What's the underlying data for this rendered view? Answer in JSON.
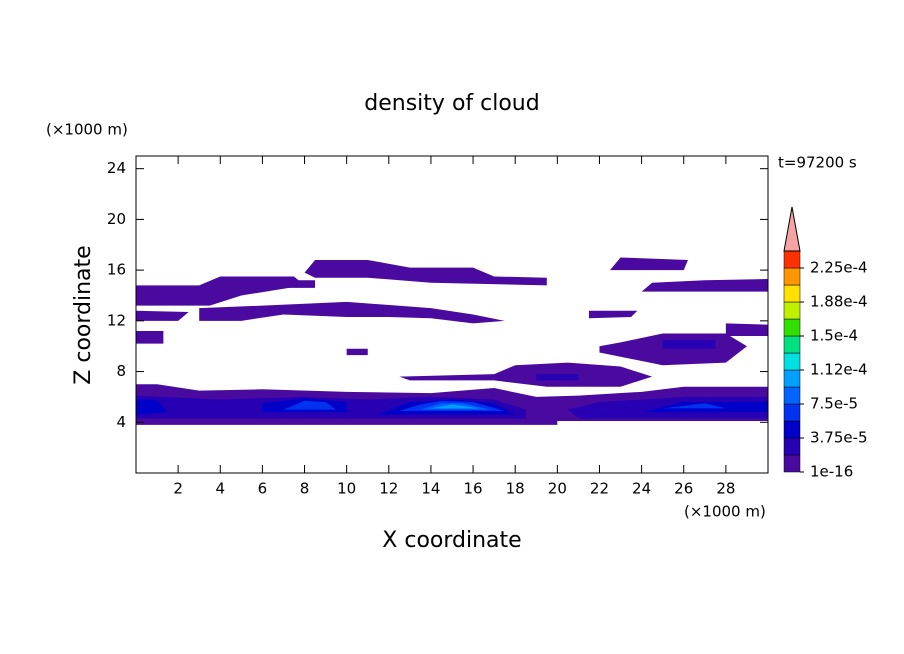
{
  "chart_data": {
    "type": "contour",
    "title": "density of cloud",
    "time_label": "t=97200 s",
    "x_label": "X coordinate",
    "y_label": "Z coordinate",
    "x_unit": "(×1000 m)",
    "y_unit": "(×1000 m)",
    "xlim": [
      0,
      30
    ],
    "ylim": [
      0,
      25
    ],
    "xticks": [
      2,
      4,
      6,
      8,
      10,
      12,
      14,
      16,
      18,
      20,
      22,
      24,
      26,
      28
    ],
    "yticks": [
      4,
      8,
      12,
      16,
      20,
      24
    ],
    "colorbar": {
      "lim": [
        1e-16,
        0.00024375
      ],
      "colors": [
        "#4a0aa0",
        "#2800b4",
        "#0000c8",
        "#0032f0",
        "#0064ff",
        "#00a0ff",
        "#00e0e0",
        "#00e080",
        "#30e000",
        "#c0f000",
        "#ffe000",
        "#ff9600",
        "#ff3000"
      ],
      "extend_color": "#f4a4a4",
      "ticks": [
        {
          "value": 1e-16,
          "label": "1e-16"
        },
        {
          "value": 3.75e-05,
          "label": "3.75e-5"
        },
        {
          "value": 7.5e-05,
          "label": "7.5e-5"
        },
        {
          "value": 0.0001125,
          "label": "1.12e-4"
        },
        {
          "value": 0.00015,
          "label": "1.5e-4"
        },
        {
          "value": 0.0001875,
          "label": "1.88e-4"
        },
        {
          "value": 0.000225,
          "label": "2.25e-4"
        }
      ]
    },
    "regions": [
      {
        "level": 0,
        "x": [
          0,
          20,
          20,
          30,
          30,
          26,
          24,
          21,
          19,
          17,
          14,
          10,
          6,
          3,
          1,
          0
        ],
        "z": [
          3.8,
          3.8,
          4.1,
          4.1,
          6.8,
          6.8,
          6.4,
          6.1,
          6,
          6.7,
          6.3,
          6.4,
          6.6,
          6.5,
          7,
          7
        ]
      },
      {
        "level": 0,
        "x": [
          0,
          3.5,
          5,
          8,
          7.5,
          4,
          3,
          0
        ],
        "z": [
          13.2,
          13.2,
          14,
          14.8,
          15.5,
          15.5,
          14.8,
          14.8
        ]
      },
      {
        "level": 0,
        "x": [
          4.5,
          8.5,
          8.5,
          4.5
        ],
        "z": [
          14.6,
          14.6,
          15.2,
          15.2
        ]
      },
      {
        "level": 0,
        "x": [
          8,
          8.5,
          11,
          13,
          16,
          17,
          19.5,
          19.5,
          14,
          11,
          8.5
        ],
        "z": [
          15.8,
          16.8,
          16.8,
          16.2,
          16.2,
          15.5,
          15.4,
          14.8,
          15,
          15.4,
          15.4
        ]
      },
      {
        "level": 0,
        "x": [
          3,
          3,
          6,
          10,
          14,
          16,
          17.5,
          16,
          14,
          12,
          10,
          7,
          5
        ],
        "z": [
          12,
          13,
          13.2,
          13.5,
          13,
          12.5,
          12,
          11.8,
          12.2,
          12.3,
          12.3,
          12.5,
          12
        ]
      },
      {
        "level": 0,
        "x": [
          0,
          2,
          2.5,
          0
        ],
        "z": [
          12,
          12,
          12.7,
          12.8
        ]
      },
      {
        "level": 0,
        "x": [
          21.5,
          23.5,
          23.8,
          21.5
        ],
        "z": [
          12.2,
          12.3,
          12.8,
          12.8
        ]
      },
      {
        "level": 0,
        "x": [
          0,
          1.3,
          1.3,
          0
        ],
        "z": [
          10.2,
          10.2,
          11.2,
          11.2
        ]
      },
      {
        "level": 0,
        "x": [
          22.5,
          26,
          26.2,
          23
        ],
        "z": [
          16,
          16,
          16.8,
          17
        ]
      },
      {
        "level": 0,
        "x": [
          24,
          30,
          30,
          27,
          24.5
        ],
        "z": [
          14.3,
          14.3,
          15.3,
          15.2,
          15
        ]
      },
      {
        "level": 0,
        "x": [
          28,
          30,
          30,
          28
        ],
        "z": [
          10.8,
          10.8,
          11.7,
          11.8
        ]
      },
      {
        "level": 0,
        "x": [
          22,
          25,
          28,
          29,
          28,
          25,
          23,
          22
        ],
        "z": [
          9.5,
          8.5,
          8.7,
          10,
          11,
          11,
          10.3,
          10
        ]
      },
      {
        "level": 0,
        "x": [
          12.5,
          17,
          18,
          20.5,
          23,
          24.5,
          23,
          19.5,
          17,
          13
        ],
        "z": [
          7.6,
          7.8,
          8.5,
          8.7,
          8.4,
          7.6,
          6.8,
          6.8,
          7.3,
          7.3
        ]
      },
      {
        "level": 0,
        "x": [
          10,
          11,
          11,
          10
        ],
        "z": [
          9.3,
          9.3,
          9.8,
          9.8
        ]
      },
      {
        "level": 1,
        "x": [
          25,
          27.5,
          27.5,
          25
        ],
        "z": [
          9.8,
          9.8,
          10.5,
          10.5
        ]
      },
      {
        "level": 1,
        "x": [
          19,
          21,
          21,
          19
        ],
        "z": [
          7.3,
          7.3,
          7.8,
          7.8
        ]
      },
      {
        "level": 1,
        "x": [
          0,
          18.5,
          18.5,
          17,
          14,
          11,
          8,
          4,
          0
        ],
        "z": [
          4.3,
          4.3,
          5,
          5.8,
          6,
          5.8,
          6,
          5.8,
          6.1
        ]
      },
      {
        "level": 1,
        "x": [
          21,
          30,
          30,
          26,
          22,
          20.5
        ],
        "z": [
          4.3,
          4.3,
          6,
          6,
          5.6,
          5
        ]
      },
      {
        "level": 2,
        "x": [
          0,
          1.5,
          1,
          0
        ],
        "z": [
          4.6,
          4.8,
          5.8,
          5.8
        ]
      },
      {
        "level": 2,
        "x": [
          6,
          10,
          10,
          8,
          6
        ],
        "z": [
          4.8,
          4.8,
          5.6,
          5.9,
          5.5
        ]
      },
      {
        "level": 2,
        "x": [
          11.5,
          18,
          17,
          15,
          13
        ],
        "z": [
          4.6,
          4.6,
          5.5,
          5.8,
          5.6
        ]
      },
      {
        "level": 2,
        "x": [
          24,
          30,
          30,
          26
        ],
        "z": [
          4.8,
          4.8,
          5.6,
          5.6
        ]
      },
      {
        "level": 3,
        "x": [
          7,
          9.5,
          9,
          8
        ],
        "z": [
          5,
          5,
          5.6,
          5.7
        ]
      },
      {
        "level": 3,
        "x": [
          12.5,
          17.5,
          16,
          14.5,
          13.5
        ],
        "z": [
          4.9,
          4.9,
          5.6,
          5.7,
          5.4
        ]
      },
      {
        "level": 3,
        "x": [
          25,
          28,
          27
        ],
        "z": [
          5.1,
          5.1,
          5.5
        ]
      },
      {
        "level": 4,
        "x": [
          13.5,
          16.8,
          15.5,
          14.5
        ],
        "z": [
          5,
          5,
          5.5,
          5.5
        ]
      },
      {
        "level": 5,
        "x": [
          14,
          16.3,
          15
        ],
        "z": [
          5.1,
          5.1,
          5.4
        ]
      }
    ]
  }
}
